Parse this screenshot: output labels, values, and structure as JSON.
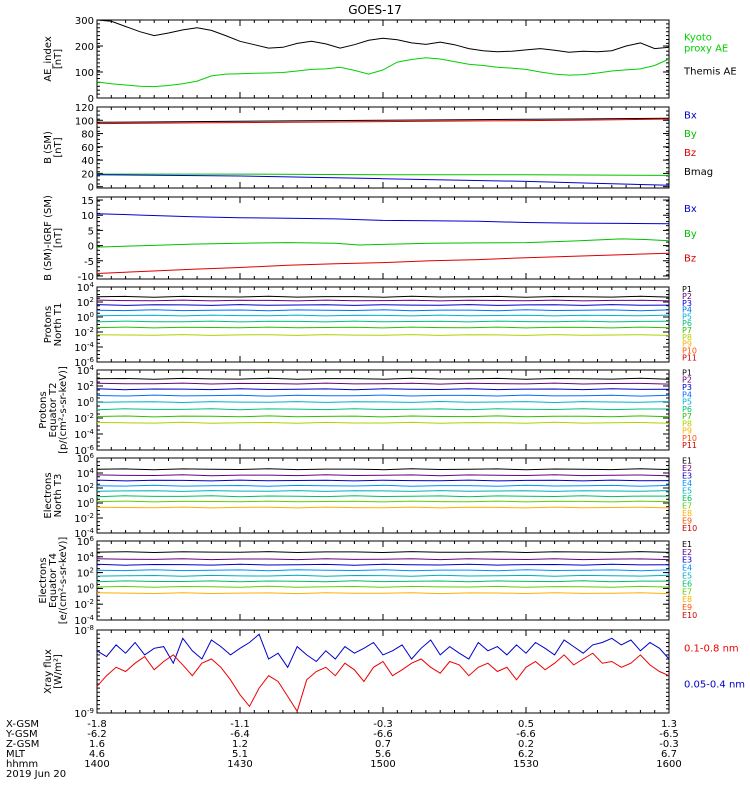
{
  "title": "GOES-17",
  "chart_data": {
    "type": "line",
    "time_ticks": [
      "1400",
      "1430",
      "1500",
      "1530",
      "1600"
    ],
    "panels": [
      {
        "ylabel": [
          "AE_index",
          "[nT]"
        ],
        "ylim": [
          0,
          300
        ],
        "yticks": [
          "0",
          "100",
          "200",
          "300"
        ],
        "legend": [
          {
            "name": "Kyoto\nproxy AE",
            "color": "#00d000"
          },
          {
            "name": "Themis AE",
            "color": "#000000"
          }
        ],
        "series": [
          {
            "name": "Themis AE",
            "color": "#000000",
            "x": [
              0,
              3,
              6,
              9,
              12,
              15,
              18,
              21,
              24,
              27,
              30,
              33,
              36,
              39,
              42,
              45,
              48,
              51,
              54,
              57,
              60,
              63,
              66,
              69,
              72,
              75,
              78,
              81,
              84,
              87,
              90,
              93,
              96,
              99,
              102,
              105,
              108,
              111,
              114,
              117,
              120
            ],
            "values": [
              300,
              295,
              275,
              255,
              240,
              250,
              262,
              270,
              260,
              240,
              218,
              205,
              192,
              195,
              210,
              218,
              208,
              192,
              205,
              222,
              230,
              224,
              212,
              206,
              215,
              205,
              190,
              182,
              178,
              180,
              185,
              190,
              184,
              176,
              180,
              178,
              182,
              200,
              212,
              190,
              195
            ]
          },
          {
            "name": "Kyoto proxy AE",
            "color": "#00d000",
            "x": [
              0,
              3,
              6,
              9,
              12,
              15,
              18,
              21,
              24,
              27,
              30,
              33,
              36,
              39,
              42,
              45,
              48,
              51,
              54,
              57,
              60,
              63,
              66,
              69,
              72,
              75,
              78,
              81,
              84,
              87,
              90,
              93,
              96,
              99,
              102,
              105,
              108,
              111,
              114,
              117,
              120
            ],
            "values": [
              62,
              55,
              50,
              45,
              44,
              48,
              55,
              65,
              85,
              92,
              93,
              95,
              96,
              98,
              104,
              110,
              112,
              118,
              106,
              92,
              108,
              138,
              148,
              155,
              150,
              140,
              130,
              125,
              118,
              115,
              110,
              100,
              92,
              88,
              90,
              96,
              104,
              108,
              112,
              125,
              150
            ]
          }
        ]
      },
      {
        "ylabel": [
          "B (SM)",
          "[nT]"
        ],
        "ylim": [
          -2,
          120
        ],
        "yticks": [
          "0",
          "20",
          "40",
          "60",
          "80",
          "100",
          "120"
        ],
        "legend": [
          {
            "name": "Bx",
            "color": "#0000cc"
          },
          {
            "name": "By",
            "color": "#00c000"
          },
          {
            "name": "Bz",
            "color": "#dd0000"
          },
          {
            "name": "Bmag",
            "color": "#000000"
          }
        ],
        "series": [
          {
            "name": "Bmag",
            "color": "#000000",
            "x": [
              0,
              20,
              40,
              60,
              80,
              100,
              120
            ],
            "values": [
              97,
              98,
              99,
              100,
              101,
              102,
              103
            ]
          },
          {
            "name": "Bz",
            "color": "#dd0000",
            "x": [
              0,
              20,
              40,
              60,
              80,
              100,
              120
            ],
            "values": [
              95,
              96,
              97,
              98,
              99,
              100,
              102
            ]
          },
          {
            "name": "By",
            "color": "#00c000",
            "x": [
              0,
              30,
              60,
              90,
              120
            ],
            "values": [
              19,
              19,
              18,
              18,
              17
            ]
          },
          {
            "name": "Bx",
            "color": "#0000cc",
            "x": [
              0,
              30,
              60,
              90,
              105,
              120
            ],
            "values": [
              18,
              16,
              12,
              8,
              5,
              2
            ]
          }
        ]
      },
      {
        "ylabel": [
          "B (SM)-IGRF (SM)",
          "[nT]"
        ],
        "ylim": [
          -11,
          16
        ],
        "yticks": [
          "-10",
          "-5",
          "0",
          "5",
          "10",
          "15"
        ],
        "legend": [
          {
            "name": "Bx",
            "color": "#0000cc"
          },
          {
            "name": "By",
            "color": "#00c000"
          },
          {
            "name": "Bz",
            "color": "#dd0000"
          }
        ],
        "series": [
          {
            "name": "Bx",
            "color": "#0000cc",
            "x": [
              0,
              10,
              20,
              30,
              40,
              50,
              60,
              70,
              80,
              90,
              100,
              110,
              120
            ],
            "values": [
              10.5,
              10,
              9.5,
              9.2,
              9,
              8.8,
              8.3,
              8.2,
              8.0,
              7.6,
              7.4,
              7.3,
              7.2
            ]
          },
          {
            "name": "By",
            "color": "#00c000",
            "x": [
              0,
              10,
              20,
              30,
              40,
              50,
              55,
              60,
              70,
              80,
              90,
              100,
              110,
              115,
              120
            ],
            "values": [
              -0.5,
              0,
              0.5,
              0.8,
              1.0,
              0.8,
              0.2,
              0.4,
              0.8,
              0.9,
              1.0,
              1.5,
              2.2,
              2.0,
              1.6
            ]
          },
          {
            "name": "Bz",
            "color": "#dd0000",
            "x": [
              0,
              10,
              20,
              30,
              40,
              50,
              60,
              70,
              80,
              90,
              100,
              110,
              120
            ],
            "values": [
              -9.2,
              -8.5,
              -7.8,
              -7.2,
              -6.5,
              -6.0,
              -5.6,
              -5.0,
              -4.6,
              -4.0,
              -3.5,
              -3.0,
              -2.5
            ]
          }
        ]
      },
      {
        "ylabel": [
          "Protons",
          "North T1"
        ],
        "ylog": true,
        "ylim": [
          -6,
          4
        ],
        "yticks": [
          "10^-6",
          "10^-4",
          "10^-2",
          "10^0",
          "10^2",
          "10^4"
        ],
        "channels": [
          "P1",
          "P2",
          "P3",
          "P4",
          "P5",
          "P6",
          "P7",
          "P8",
          "P9",
          "P10",
          "P11"
        ],
        "colors": [
          "#000000",
          "#6a0080",
          "#0000cc",
          "#0070ff",
          "#00b0d0",
          "#00c080",
          "#30c000",
          "#b0d000",
          "#ffb000",
          "#ff5000",
          "#cc0000"
        ],
        "levels": [
          2.7,
          2.2,
          1.6,
          0.9,
          0.2,
          -0.6,
          -1.4,
          -2.4,
          null,
          null,
          null
        ]
      },
      {
        "ylabel": [
          "Protons",
          "Equator T2",
          "[p/(cm²-s-sr-keV)]"
        ],
        "ylog": true,
        "ylim": [
          -6,
          4
        ],
        "yticks": [
          "10^-6",
          "10^-4",
          "10^-2",
          "10^0",
          "10^2",
          "10^4"
        ],
        "channels": [
          "P1",
          "P2",
          "P3",
          "P4",
          "P5",
          "P6",
          "P7",
          "P8",
          "P9",
          "P10",
          "P11"
        ],
        "colors": [
          "#000000",
          "#6a0080",
          "#0000cc",
          "#0070ff",
          "#00b0d0",
          "#00c080",
          "#30c000",
          "#b0d000",
          "#ffb000",
          "#ff5000",
          "#cc0000"
        ],
        "levels": [
          2.9,
          2.3,
          1.6,
          0.8,
          0.0,
          -0.9,
          -1.8,
          -2.6,
          null,
          null,
          null
        ]
      },
      {
        "ylabel": [
          "Electrons",
          "North T3"
        ],
        "ylog": true,
        "ylim": [
          -4,
          6
        ],
        "yticks": [
          "10^-4",
          "10^-2",
          "10^0",
          "10^2",
          "10^4",
          "10^6"
        ],
        "channels": [
          "E1",
          "E2",
          "E3",
          "E4",
          "E5",
          "E6",
          "E7",
          "E8",
          "E9",
          "E10"
        ],
        "colors": [
          "#000000",
          "#6a0080",
          "#0000cc",
          "#0090ff",
          "#00b0c0",
          "#00c060",
          "#60d000",
          "#ffb000",
          "#ff5000",
          "#cc0000"
        ],
        "levels": [
          4.5,
          3.7,
          3.0,
          2.3,
          1.6,
          0.9,
          0.2,
          -0.6,
          null,
          null
        ]
      },
      {
        "ylabel": [
          "Electrons",
          "Equator T4",
          "[e/(cm²-s-sr-keV)]"
        ],
        "ylog": true,
        "ylim": [
          -4,
          6
        ],
        "yticks": [
          "10^-4",
          "10^-2",
          "10^0",
          "10^2",
          "10^4",
          "10^6"
        ],
        "channels": [
          "E1",
          "E2",
          "E3",
          "E4",
          "E5",
          "E6",
          "E7",
          "E8",
          "E9",
          "E10"
        ],
        "colors": [
          "#000000",
          "#6a0080",
          "#0000cc",
          "#0090ff",
          "#00b0c0",
          "#00c060",
          "#60d000",
          "#ffb000",
          "#ff5000",
          "#cc0000"
        ],
        "levels": [
          4.6,
          3.7,
          3.0,
          2.3,
          1.6,
          0.9,
          0.2,
          -0.6,
          null,
          null
        ]
      },
      {
        "ylabel": [
          "Xray flux",
          "[W/m²]"
        ],
        "ylog": true,
        "ylim": [
          -9,
          -8
        ],
        "yticks": [
          "10^-9",
          "10^-8"
        ],
        "legend": [
          {
            "name": "0.1-0.8 nm",
            "color": "#ee0000"
          },
          {
            "name": "0.05-0.4 nm",
            "color": "#0000cc"
          }
        ],
        "series": [
          {
            "name": "0.05-0.4 nm",
            "color": "#0000cc",
            "x": [
              0,
              2,
              4,
              6,
              8,
              10,
              12,
              14,
              16,
              18,
              20,
              22,
              24,
              26,
              28,
              30,
              32,
              34,
              36,
              38,
              40,
              42,
              44,
              46,
              48,
              50,
              52,
              54,
              56,
              58,
              60,
              62,
              64,
              66,
              68,
              70,
              72,
              74,
              76,
              78,
              80,
              82,
              84,
              86,
              88,
              90,
              92,
              94,
              96,
              98,
              100,
              102,
              104,
              106,
              108,
              110,
              112,
              114,
              116,
              118,
              120
            ],
            "values": [
              -8.25,
              -8.32,
              -8.18,
              -8.28,
              -8.15,
              -8.3,
              -8.22,
              -8.2,
              -8.4,
              -8.1,
              -8.25,
              -8.35,
              -8.12,
              -8.2,
              -8.3,
              -8.22,
              -8.15,
              -8.05,
              -8.35,
              -8.28,
              -8.45,
              -8.2,
              -8.3,
              -8.38,
              -8.25,
              -8.35,
              -8.2,
              -8.28,
              -8.22,
              -8.15,
              -8.3,
              -8.25,
              -8.18,
              -8.35,
              -8.22,
              -8.12,
              -8.3,
              -8.2,
              -8.28,
              -8.35,
              -8.15,
              -8.25,
              -8.2,
              -8.3,
              -8.18,
              -8.28,
              -8.15,
              -8.22,
              -8.3,
              -8.12,
              -8.2,
              -8.28,
              -8.18,
              -8.15,
              -8.1,
              -8.18,
              -8.12,
              -8.25,
              -8.15,
              -8.22,
              -8.35
            ]
          },
          {
            "name": "0.1-0.8 nm",
            "color": "#ee0000",
            "x": [
              0,
              2,
              4,
              6,
              8,
              10,
              12,
              14,
              16,
              18,
              20,
              22,
              24,
              26,
              28,
              30,
              32,
              34,
              36,
              38,
              40,
              42,
              44,
              46,
              48,
              50,
              52,
              54,
              56,
              58,
              60,
              62,
              64,
              66,
              68,
              70,
              72,
              74,
              76,
              78,
              80,
              82,
              84,
              86,
              88,
              90,
              92,
              94,
              96,
              98,
              100,
              102,
              104,
              106,
              108,
              110,
              112,
              114,
              116,
              118,
              120
            ],
            "values": [
              -8.68,
              -8.55,
              -8.45,
              -8.5,
              -8.4,
              -8.32,
              -8.48,
              -8.38,
              -8.3,
              -8.42,
              -8.55,
              -8.4,
              -8.35,
              -8.45,
              -8.6,
              -8.78,
              -8.92,
              -8.7,
              -8.55,
              -8.62,
              -8.8,
              -8.98,
              -8.6,
              -8.5,
              -8.45,
              -8.55,
              -8.4,
              -8.48,
              -8.62,
              -8.45,
              -8.38,
              -8.55,
              -8.48,
              -8.4,
              -8.35,
              -8.45,
              -8.52,
              -8.38,
              -8.42,
              -8.55,
              -8.45,
              -8.4,
              -8.5,
              -8.45,
              -8.6,
              -8.45,
              -8.38,
              -8.48,
              -8.4,
              -8.3,
              -8.42,
              -8.35,
              -8.28,
              -8.4,
              -8.38,
              -8.45,
              -8.4,
              -8.3,
              -8.42,
              -8.5,
              -8.55
            ]
          }
        ]
      }
    ],
    "footer": {
      "rows": [
        {
          "label": "X-GSM",
          "values": [
            "-1.8",
            "-1.1",
            "-0.3",
            "0.5",
            "1.3"
          ]
        },
        {
          "label": "Y-GSM",
          "values": [
            "-6.2",
            "-6.4",
            "-6.6",
            "-6.6",
            "-6.5"
          ]
        },
        {
          "label": "Z-GSM",
          "values": [
            "1.6",
            "1.2",
            "0.7",
            "0.2",
            "-0.3"
          ]
        },
        {
          "label": "MLT",
          "values": [
            "4.6",
            "5.1",
            "5.6",
            "6.2",
            "6.7"
          ]
        },
        {
          "label": "hhmm",
          "values": [
            "1400",
            "1430",
            "1500",
            "1530",
            "1600"
          ]
        }
      ],
      "date": "2019 Jun 20"
    }
  }
}
